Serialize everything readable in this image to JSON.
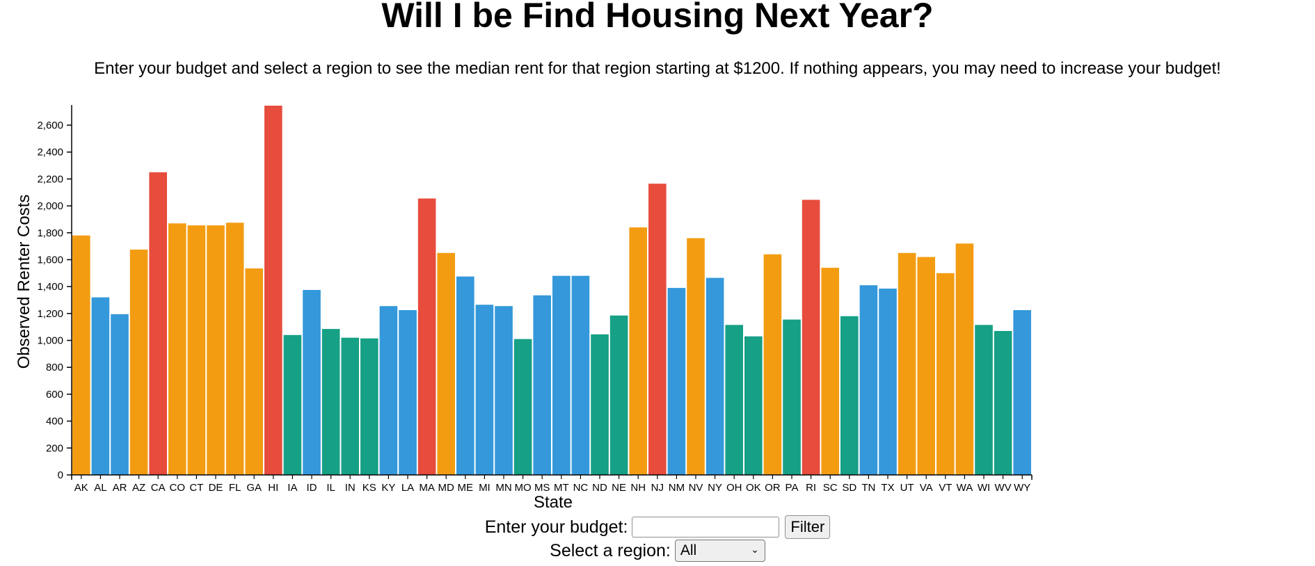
{
  "page": {
    "title": "Will I be Find Housing Next Year?",
    "subtitle": "Enter your budget and select a region to see the median rent for that region starting at $1200. If nothing appears, you may need to increase your budget!"
  },
  "controls": {
    "budget_label": "Enter your budget:",
    "budget_value": "",
    "filter_label": "Filter",
    "region_label": "Select a region:",
    "region_selected": "All"
  },
  "colors": {
    "red": "#e74c3c",
    "orange": "#f39c12",
    "blue": "#3498db",
    "green": "#16a085"
  },
  "chart_data": {
    "type": "bar",
    "title": "",
    "xlabel": "State",
    "ylabel": "Observed Renter Costs",
    "ylim": [
      0,
      2750
    ],
    "yticks": [
      0,
      200,
      400,
      600,
      800,
      1000,
      1200,
      1400,
      1600,
      1800,
      2000,
      2200,
      2400,
      2600
    ],
    "categories": [
      "AK",
      "AL",
      "AR",
      "AZ",
      "CA",
      "CO",
      "CT",
      "DE",
      "FL",
      "GA",
      "HI",
      "IA",
      "ID",
      "IL",
      "IN",
      "KS",
      "KY",
      "LA",
      "MA",
      "MD",
      "ME",
      "MI",
      "MN",
      "MO",
      "MS",
      "MT",
      "NC",
      "ND",
      "NE",
      "NH",
      "NJ",
      "NM",
      "NV",
      "NY",
      "OH",
      "OK",
      "OR",
      "PA",
      "RI",
      "SC",
      "SD",
      "TN",
      "TX",
      "UT",
      "VA",
      "VT",
      "WA",
      "WI",
      "WV",
      "WY"
    ],
    "values": [
      1780,
      1320,
      1195,
      1675,
      2250,
      1870,
      1855,
      1855,
      1875,
      1535,
      2745,
      1040,
      1375,
      1085,
      1020,
      1015,
      1255,
      1225,
      2055,
      1650,
      1475,
      1265,
      1255,
      1010,
      1335,
      1480,
      1480,
      1045,
      1185,
      1840,
      2165,
      1390,
      1760,
      1465,
      1115,
      1030,
      1640,
      1155,
      2045,
      1540,
      1180,
      1410,
      1385,
      1650,
      1620,
      1500,
      1720,
      1115,
      1070,
      1225
    ],
    "color_groups": [
      "orange",
      "blue",
      "blue",
      "orange",
      "red",
      "orange",
      "orange",
      "orange",
      "orange",
      "orange",
      "red",
      "green",
      "blue",
      "green",
      "green",
      "green",
      "blue",
      "blue",
      "red",
      "orange",
      "blue",
      "blue",
      "blue",
      "green",
      "blue",
      "blue",
      "blue",
      "green",
      "green",
      "orange",
      "red",
      "blue",
      "orange",
      "blue",
      "green",
      "green",
      "orange",
      "green",
      "red",
      "orange",
      "green",
      "blue",
      "blue",
      "orange",
      "orange",
      "orange",
      "orange",
      "green",
      "green",
      "blue"
    ]
  }
}
